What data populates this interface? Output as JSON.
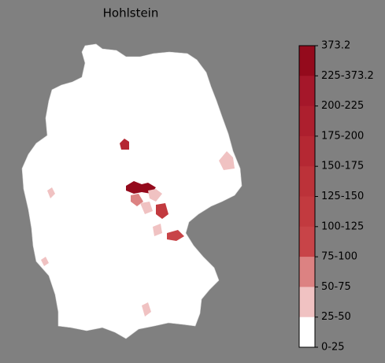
{
  "title": "Hohlstein",
  "legend": {
    "labels": [
      "373.2",
      "225-373.2",
      "200-225",
      "175-200",
      "150-175",
      "125-150",
      "100-125",
      "75-100",
      "50-75",
      "25-50",
      "0-25"
    ],
    "colors": [
      "#940a1c",
      "#a5172a",
      "#ad1f2e",
      "#b52833",
      "#bc3239",
      "#c23a3f",
      "#c84448",
      "#dc8282",
      "#f0c2c2",
      "#ffffff"
    ]
  }
}
